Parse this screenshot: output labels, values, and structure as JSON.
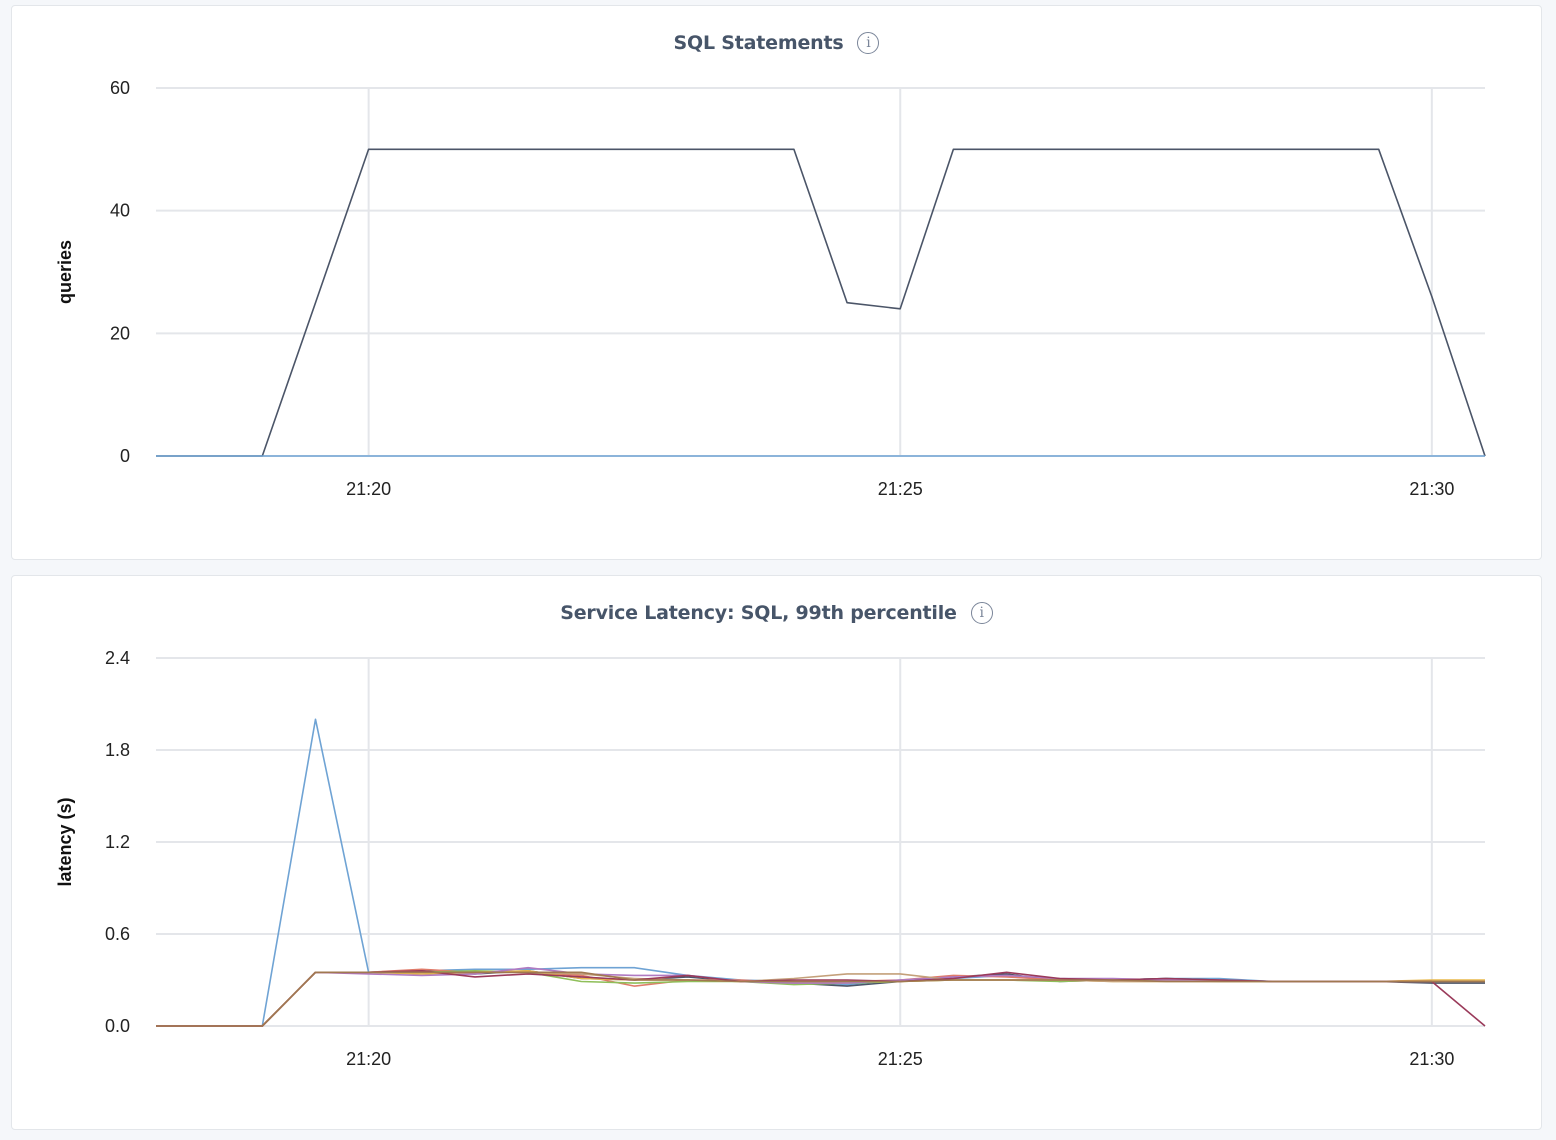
{
  "chart_data": [
    {
      "type": "line",
      "title": "SQL Statements",
      "xlabel": "",
      "ylabel": "queries",
      "ylim": [
        0,
        60
      ],
      "yticks": [
        "0",
        "20",
        "40",
        "60"
      ],
      "ytick_values": [
        0,
        20,
        40,
        60
      ],
      "xlim": [
        -2,
        10.5
      ],
      "xticks": [
        "21:20",
        "21:25",
        "21:30"
      ],
      "xtick_values": [
        0,
        5,
        10
      ],
      "grid": true,
      "legend": "none",
      "series": [
        {
          "color": "#4b5568",
          "x": [
            -2,
            -1,
            -0.5,
            0,
            0.5,
            1,
            1.5,
            2,
            2.5,
            3,
            3.5,
            4,
            4.5,
            5,
            5.5,
            6,
            6.5,
            7,
            7.5,
            8,
            8.5,
            9,
            9.5,
            10,
            10.5
          ],
          "y": [
            0,
            0,
            25,
            50,
            50,
            50,
            50,
            50,
            50,
            50,
            50,
            50,
            25,
            24,
            50,
            50,
            50,
            50,
            50,
            50,
            50,
            50,
            50,
            26,
            0
          ]
        },
        {
          "color": "#6fa3d4",
          "x": [
            -2,
            10.5
          ],
          "y": [
            0,
            0
          ]
        }
      ]
    },
    {
      "type": "line",
      "title": "Service Latency: SQL, 99th percentile",
      "xlabel": "",
      "ylabel": "latency (s)",
      "ylim": [
        0,
        2.4
      ],
      "yticks": [
        "0.0",
        "0.6",
        "1.2",
        "1.8",
        "2.4"
      ],
      "ytick_values": [
        0,
        0.6,
        1.2,
        1.8,
        2.4
      ],
      "xlim": [
        -2,
        10.5
      ],
      "xticks": [
        "21:20",
        "21:25",
        "21:30"
      ],
      "xtick_values": [
        0,
        5,
        10
      ],
      "grid": true,
      "legend": "none",
      "series": [
        {
          "color": "#6fa3d4",
          "x": [
            -2,
            -1,
            -0.5,
            0,
            0.5,
            1,
            1.5,
            2,
            2.5,
            3,
            3.5,
            4,
            4.5,
            5,
            5.5,
            6,
            6.5,
            7,
            7.5,
            8,
            8.5,
            9,
            9.5,
            10,
            10.5
          ],
          "y": [
            0,
            0,
            2.0,
            0.35,
            0.36,
            0.37,
            0.37,
            0.38,
            0.38,
            0.33,
            0.3,
            0.29,
            0.27,
            0.3,
            0.31,
            0.33,
            0.3,
            0.3,
            0.31,
            0.31,
            0.29,
            0.29,
            0.29,
            0.29,
            0.29
          ]
        },
        {
          "color": "#4b5568",
          "x": [
            -2,
            -1,
            -0.5,
            0,
            0.5,
            1,
            1.5,
            2,
            2.5,
            3,
            3.5,
            4,
            4.5,
            5,
            5.5,
            6,
            6.5,
            7,
            7.5,
            8,
            8.5,
            9,
            9.5,
            10,
            10.5
          ],
          "y": [
            0,
            0,
            0.35,
            0.35,
            0.36,
            0.34,
            0.36,
            0.31,
            0.3,
            0.32,
            0.29,
            0.28,
            0.26,
            0.29,
            0.32,
            0.34,
            0.29,
            0.3,
            0.31,
            0.3,
            0.29,
            0.29,
            0.29,
            0.28,
            0.28
          ]
        },
        {
          "color": "#e07b6a",
          "x": [
            -2,
            -1,
            -0.5,
            0,
            0.5,
            1,
            1.5,
            2,
            2.5,
            3,
            3.5,
            4,
            4.5,
            5,
            5.5,
            6,
            6.5,
            7,
            7.5,
            8,
            8.5,
            9,
            9.5,
            10,
            10.5
          ],
          "y": [
            0,
            0,
            0.35,
            0.35,
            0.37,
            0.35,
            0.35,
            0.33,
            0.26,
            0.3,
            0.3,
            0.28,
            0.29,
            0.3,
            0.33,
            0.32,
            0.3,
            0.3,
            0.3,
            0.29,
            0.29,
            0.29,
            0.29,
            0.29,
            0.29
          ]
        },
        {
          "color": "#8fbf5a",
          "x": [
            -2,
            -1,
            -0.5,
            0,
            0.5,
            1,
            1.5,
            2,
            2.5,
            3,
            3.5,
            4,
            4.5,
            5,
            5.5,
            6,
            6.5,
            7,
            7.5,
            8,
            8.5,
            9,
            9.5,
            10,
            10.5
          ],
          "y": [
            0,
            0,
            0.35,
            0.35,
            0.35,
            0.36,
            0.35,
            0.29,
            0.28,
            0.29,
            0.29,
            0.27,
            0.28,
            0.29,
            0.3,
            0.3,
            0.29,
            0.3,
            0.3,
            0.29,
            0.29,
            0.29,
            0.29,
            0.29,
            0.29
          ]
        },
        {
          "color": "#e8b84a",
          "x": [
            -2,
            -1,
            -0.5,
            0,
            0.5,
            1,
            1.5,
            2,
            2.5,
            3,
            3.5,
            4,
            4.5,
            5,
            5.5,
            6,
            6.5,
            7,
            7.5,
            8,
            8.5,
            9,
            9.5,
            10,
            10.5
          ],
          "y": [
            0,
            0,
            0.35,
            0.35,
            0.34,
            0.35,
            0.36,
            0.31,
            0.3,
            0.3,
            0.29,
            0.29,
            0.29,
            0.29,
            0.3,
            0.3,
            0.3,
            0.29,
            0.29,
            0.29,
            0.29,
            0.29,
            0.29,
            0.3,
            0.3
          ]
        },
        {
          "color": "#b07ac2",
          "x": [
            -2,
            -1,
            -0.5,
            0,
            0.5,
            1,
            1.5,
            2,
            2.5,
            3,
            3.5,
            4,
            4.5,
            5,
            5.5,
            6,
            6.5,
            7,
            7.5,
            8,
            8.5,
            9,
            9.5,
            10,
            10.5
          ],
          "y": [
            0,
            0,
            0.35,
            0.34,
            0.33,
            0.34,
            0.38,
            0.34,
            0.33,
            0.33,
            0.29,
            0.28,
            0.28,
            0.3,
            0.32,
            0.33,
            0.31,
            0.31,
            0.3,
            0.3,
            0.29,
            0.29,
            0.29,
            0.29,
            0.29
          ]
        },
        {
          "color": "#c4a07a",
          "x": [
            -2,
            -1,
            -0.5,
            0,
            0.5,
            1,
            1.5,
            2,
            2.5,
            3,
            3.5,
            4,
            4.5,
            5,
            5.5,
            6,
            6.5,
            7,
            7.5,
            8,
            8.5,
            9,
            9.5,
            10,
            10.5
          ],
          "y": [
            0,
            0,
            0.35,
            0.35,
            0.35,
            0.35,
            0.35,
            0.34,
            0.31,
            0.3,
            0.29,
            0.31,
            0.34,
            0.34,
            0.3,
            0.3,
            0.3,
            0.29,
            0.29,
            0.29,
            0.29,
            0.29,
            0.29,
            0.29,
            0.29
          ]
        },
        {
          "color": "#9a3a5a",
          "x": [
            -2,
            -1,
            -0.5,
            0,
            0.5,
            1,
            1.5,
            2,
            2.5,
            3,
            3.5,
            4,
            4.5,
            5,
            5.5,
            6,
            6.5,
            7,
            7.5,
            8,
            8.5,
            9,
            9.5,
            10,
            10.5
          ],
          "y": [
            0,
            0,
            0.35,
            0.35,
            0.36,
            0.32,
            0.34,
            0.32,
            0.3,
            0.33,
            0.29,
            0.3,
            0.3,
            0.29,
            0.31,
            0.35,
            0.31,
            0.3,
            0.31,
            0.3,
            0.29,
            0.29,
            0.29,
            0.29,
            0.0
          ]
        },
        {
          "color": "#a07850",
          "x": [
            -2,
            -1,
            -0.5,
            0,
            0.5,
            1,
            1.5,
            2,
            2.5,
            3,
            3.5,
            4,
            4.5,
            5,
            5.5,
            6,
            6.5,
            7,
            7.5,
            8,
            8.5,
            9,
            9.5,
            10,
            10.5
          ],
          "y": [
            0,
            0,
            0.35,
            0.35,
            0.35,
            0.35,
            0.35,
            0.35,
            0.3,
            0.3,
            0.29,
            0.29,
            0.29,
            0.29,
            0.3,
            0.3,
            0.3,
            0.3,
            0.29,
            0.29,
            0.29,
            0.29,
            0.29,
            0.29,
            0.29
          ]
        }
      ]
    }
  ],
  "info_icon_glyph": "i"
}
